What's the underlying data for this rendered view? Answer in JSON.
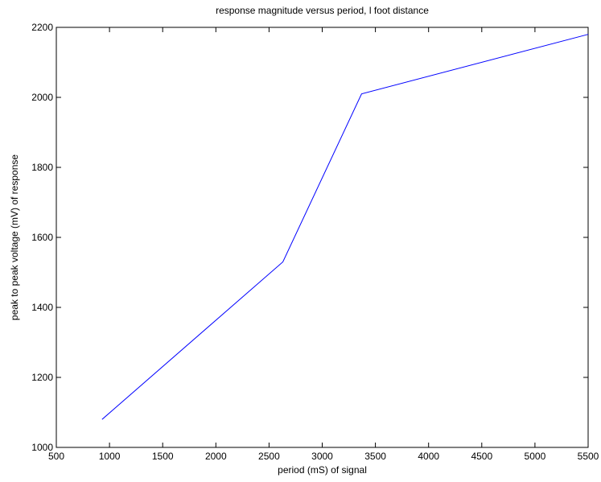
{
  "chart_data": {
    "type": "line",
    "title": "response magnitude versus period, l foot distance",
    "xlabel": "period (mS) of signal",
    "ylabel": "peak to peak voltage (mV) of response",
    "xlim": [
      500,
      5500
    ],
    "ylim": [
      1000,
      2200
    ],
    "xticks": [
      500,
      1000,
      1500,
      2000,
      2500,
      3000,
      3500,
      4000,
      4500,
      5000,
      5500
    ],
    "yticks": [
      1000,
      1200,
      1400,
      1600,
      1800,
      2000,
      2200
    ],
    "grid": false,
    "legend": "none",
    "series": [
      {
        "color": "#0000ff",
        "x": [
          930,
          2630,
          3370,
          5500
        ],
        "y": [
          1080,
          1530,
          2010,
          2180
        ]
      }
    ]
  }
}
